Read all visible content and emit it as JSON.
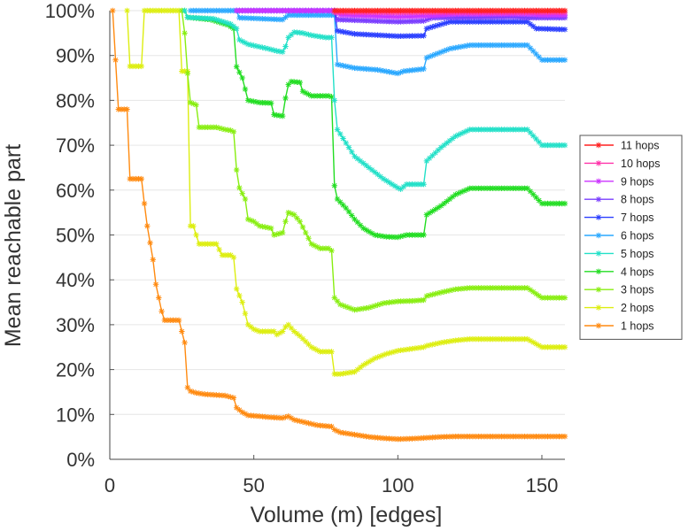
{
  "chart_data": {
    "type": "line",
    "title": "",
    "xlabel": "Volume (m) [edges]",
    "ylabel": "Mean reachable part",
    "xlim": [
      0,
      158
    ],
    "ylim": [
      0,
      100
    ],
    "x_ticks": [
      0,
      50,
      100,
      150
    ],
    "x_tick_labels": [
      "0",
      "50",
      "100",
      "150"
    ],
    "y_ticks": [
      0,
      10,
      20,
      30,
      40,
      50,
      60,
      70,
      80,
      90,
      100
    ],
    "y_tick_labels": [
      "0%",
      "10%",
      "20%",
      "30%",
      "40%",
      "50%",
      "60%",
      "70%",
      "80%",
      "90%",
      "100%"
    ],
    "grid": "horizontal",
    "legend_position": "right",
    "series": [
      {
        "name": "11 hops",
        "color": "#ff2020",
        "points": [
          [
            78,
            100
          ],
          [
            158,
            100
          ]
        ]
      },
      {
        "name": "10 hops",
        "color": "#ff33aa",
        "points": [
          [
            78,
            99.6
          ],
          [
            158,
            99.6
          ]
        ]
      },
      {
        "name": "9 hops",
        "color": "#cc33ff",
        "points": [
          [
            44,
            100
          ],
          [
            78,
            100
          ],
          [
            80,
            99
          ],
          [
            100,
            98.6
          ],
          [
            110,
            98.8
          ],
          [
            120,
            99.2
          ],
          [
            145,
            99.2
          ],
          [
            150,
            99
          ],
          [
            158,
            99
          ]
        ]
      },
      {
        "name": "8 hops",
        "color": "#7a3dff",
        "points": [
          [
            44,
            100
          ],
          [
            78,
            100
          ],
          [
            79,
            98
          ],
          [
            100,
            97.5
          ],
          [
            109,
            97.7
          ],
          [
            112,
            98.4
          ],
          [
            140,
            98.6
          ],
          [
            145,
            98.4
          ],
          [
            158,
            98.4
          ]
        ]
      },
      {
        "name": "7 hops",
        "color": "#2b3fff",
        "points": [
          [
            44,
            100
          ],
          [
            78,
            100
          ],
          [
            79,
            95.5
          ],
          [
            85,
            94.8
          ],
          [
            100,
            94.3
          ],
          [
            109,
            94.4
          ],
          [
            110,
            96
          ],
          [
            118,
            97.5
          ],
          [
            145,
            97.5
          ],
          [
            148,
            96
          ],
          [
            158,
            95.8
          ]
        ]
      },
      {
        "name": "6 hops",
        "color": "#2aa8ff",
        "points": [
          [
            28,
            100
          ],
          [
            44,
            100
          ],
          [
            45,
            98.4
          ],
          [
            60,
            98
          ],
          [
            62,
            99
          ],
          [
            78,
            99
          ],
          [
            79,
            88
          ],
          [
            85,
            87.2
          ],
          [
            93,
            86.8
          ],
          [
            100,
            86
          ],
          [
            102,
            86.5
          ],
          [
            109,
            87
          ],
          [
            110,
            89.5
          ],
          [
            118,
            91.5
          ],
          [
            125,
            92.3
          ],
          [
            145,
            92.3
          ],
          [
            150,
            89
          ],
          [
            158,
            89
          ]
        ]
      },
      {
        "name": "5 hops",
        "color": "#22e0c8",
        "points": [
          [
            26,
            100
          ],
          [
            27,
            98.5
          ],
          [
            36,
            98.2
          ],
          [
            42,
            97
          ],
          [
            44,
            96
          ],
          [
            45,
            93.5
          ],
          [
            48,
            92.5
          ],
          [
            55,
            91.5
          ],
          [
            58,
            91
          ],
          [
            60,
            90.8
          ],
          [
            61,
            92
          ],
          [
            62,
            94
          ],
          [
            64,
            95.2
          ],
          [
            67,
            95
          ],
          [
            70,
            94.5
          ],
          [
            75,
            94
          ],
          [
            77,
            94
          ],
          [
            78,
            80
          ],
          [
            79,
            73.5
          ],
          [
            82,
            70.5
          ],
          [
            85,
            67.5
          ],
          [
            90,
            65
          ],
          [
            95,
            62.5
          ],
          [
            100,
            60.5
          ],
          [
            101,
            60.2
          ],
          [
            103,
            61.3
          ],
          [
            109,
            61.3
          ],
          [
            110,
            66.5
          ],
          [
            115,
            69.5
          ],
          [
            120,
            72
          ],
          [
            125,
            73.5
          ],
          [
            145,
            73.5
          ],
          [
            150,
            70
          ],
          [
            158,
            70
          ]
        ]
      },
      {
        "name": "4 hops",
        "color": "#22dd22",
        "points": [
          [
            26,
            100
          ],
          [
            27,
            98.5
          ],
          [
            35,
            98
          ],
          [
            41,
            96.8
          ],
          [
            43,
            96
          ],
          [
            44,
            87.5
          ],
          [
            46,
            85
          ],
          [
            48,
            80
          ],
          [
            52,
            79.5
          ],
          [
            56,
            79.4
          ],
          [
            57,
            76.8
          ],
          [
            60,
            76.5
          ],
          [
            61,
            80.5
          ],
          [
            62,
            83.5
          ],
          [
            63,
            84.2
          ],
          [
            66,
            84
          ],
          [
            67,
            82
          ],
          [
            70,
            81
          ],
          [
            76,
            81
          ],
          [
            77,
            80.8
          ],
          [
            78,
            61
          ],
          [
            79,
            58
          ],
          [
            82,
            56
          ],
          [
            85,
            53.5
          ],
          [
            88,
            51.5
          ],
          [
            92,
            50
          ],
          [
            96,
            49.6
          ],
          [
            100,
            49.5
          ],
          [
            103,
            50
          ],
          [
            109,
            50
          ],
          [
            110,
            54.5
          ],
          [
            115,
            56.5
          ],
          [
            120,
            59
          ],
          [
            125,
            60.4
          ],
          [
            145,
            60.4
          ],
          [
            150,
            57
          ],
          [
            158,
            57
          ]
        ]
      },
      {
        "name": "3 hops",
        "color": "#88ee11",
        "points": [
          [
            25,
            100
          ],
          [
            26,
            95
          ],
          [
            27,
            86
          ],
          [
            28,
            79.5
          ],
          [
            30,
            79
          ],
          [
            31,
            74
          ],
          [
            37,
            74
          ],
          [
            40,
            73.5
          ],
          [
            42,
            73.3
          ],
          [
            43,
            73
          ],
          [
            44,
            64.5
          ],
          [
            45,
            60.5
          ],
          [
            47,
            58
          ],
          [
            48,
            53.5
          ],
          [
            50,
            53
          ],
          [
            52,
            52
          ],
          [
            56,
            51.5
          ],
          [
            57,
            50
          ],
          [
            60,
            50.5
          ],
          [
            61,
            53
          ],
          [
            62,
            55
          ],
          [
            64,
            54.5
          ],
          [
            66,
            53
          ],
          [
            68,
            50.5
          ],
          [
            70,
            48
          ],
          [
            73,
            47
          ],
          [
            76,
            47
          ],
          [
            77,
            46.5
          ],
          [
            78,
            36
          ],
          [
            80,
            34.5
          ],
          [
            85,
            33.3
          ],
          [
            90,
            33.8
          ],
          [
            95,
            34.8
          ],
          [
            100,
            35.2
          ],
          [
            105,
            35.3
          ],
          [
            109,
            35.5
          ],
          [
            110,
            36.4
          ],
          [
            115,
            37.2
          ],
          [
            120,
            37.9
          ],
          [
            125,
            38.2
          ],
          [
            145,
            38.2
          ],
          [
            150,
            36
          ],
          [
            158,
            36
          ]
        ]
      },
      {
        "name": "2 hops",
        "color": "#ddee11",
        "points": [
          [
            6,
            100
          ],
          [
            7,
            87.6
          ],
          [
            11,
            87.6
          ],
          [
            12,
            100
          ],
          [
            24,
            100
          ],
          [
            25,
            86.5
          ],
          [
            27,
            86.5
          ],
          [
            28,
            52
          ],
          [
            29,
            52
          ],
          [
            31,
            48
          ],
          [
            37,
            48
          ],
          [
            39,
            45.5
          ],
          [
            42,
            45.5
          ],
          [
            43,
            45
          ],
          [
            44,
            38
          ],
          [
            46,
            35
          ],
          [
            48,
            30
          ],
          [
            50,
            29
          ],
          [
            52,
            28.5
          ],
          [
            57,
            28.5
          ],
          [
            58,
            27.8
          ],
          [
            60,
            28.5
          ],
          [
            61,
            29.5
          ],
          [
            62,
            30
          ],
          [
            64,
            28.5
          ],
          [
            66,
            27.5
          ],
          [
            70,
            25
          ],
          [
            73,
            24
          ],
          [
            77,
            24
          ],
          [
            78,
            19
          ],
          [
            80,
            19
          ],
          [
            85,
            19.5
          ],
          [
            88,
            21
          ],
          [
            92,
            22.5
          ],
          [
            96,
            23.5
          ],
          [
            100,
            24.2
          ],
          [
            109,
            25
          ],
          [
            110,
            25.3
          ],
          [
            115,
            26
          ],
          [
            120,
            26.5
          ],
          [
            125,
            26.8
          ],
          [
            145,
            26.8
          ],
          [
            150,
            25
          ],
          [
            158,
            25
          ]
        ]
      },
      {
        "name": "1 hops",
        "color": "#ff8a10",
        "points": [
          [
            1,
            100
          ],
          [
            3,
            78
          ],
          [
            6,
            78
          ],
          [
            7,
            62.5
          ],
          [
            11,
            62.5
          ],
          [
            12,
            57
          ],
          [
            13,
            52
          ],
          [
            15,
            44.5
          ],
          [
            16,
            39
          ],
          [
            18,
            33
          ],
          [
            19,
            31
          ],
          [
            24,
            31
          ],
          [
            25,
            28.5
          ],
          [
            26,
            26
          ],
          [
            27,
            16
          ],
          [
            28,
            15.2
          ],
          [
            30,
            14.8
          ],
          [
            33,
            14.5
          ],
          [
            40,
            14.2
          ],
          [
            43,
            13.7
          ],
          [
            44,
            11.5
          ],
          [
            46,
            10.5
          ],
          [
            48,
            9.8
          ],
          [
            52,
            9.6
          ],
          [
            55,
            9.4
          ],
          [
            60,
            9.2
          ],
          [
            62,
            9.6
          ],
          [
            64,
            8.8
          ],
          [
            68,
            8.2
          ],
          [
            72,
            7.6
          ],
          [
            77,
            7.3
          ],
          [
            78,
            6.6
          ],
          [
            80,
            6
          ],
          [
            85,
            5.5
          ],
          [
            90,
            5
          ],
          [
            95,
            4.7
          ],
          [
            100,
            4.5
          ],
          [
            105,
            4.6
          ],
          [
            110,
            4.8
          ],
          [
            115,
            5
          ],
          [
            120,
            5.1
          ],
          [
            145,
            5.1
          ],
          [
            158,
            5.1
          ]
        ]
      }
    ]
  }
}
